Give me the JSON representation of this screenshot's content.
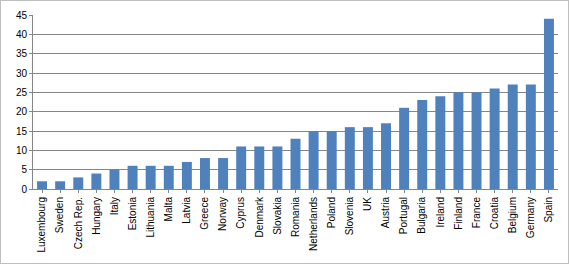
{
  "chart_data": {
    "type": "bar",
    "categories": [
      "Luxembourg",
      "Sweden",
      "Czech Rep.",
      "Hungary",
      "Italy",
      "Estonia",
      "Lithuania",
      "Malta",
      "Latvia",
      "Greece",
      "Norway",
      "Cyprus",
      "Denmark",
      "Slovakia",
      "Romania",
      "Netherlands",
      "Poland",
      "Slovenia",
      "UK",
      "Austria",
      "Portugal",
      "Bulgaria",
      "Ireland",
      "Finland",
      "France",
      "Croatia",
      "Belgium",
      "Germany",
      "Spain"
    ],
    "values": [
      2,
      2,
      3,
      4,
      5,
      6,
      6,
      6,
      7,
      8,
      8,
      11,
      11,
      11,
      13,
      15,
      15,
      16,
      16,
      17,
      21,
      23,
      24,
      25,
      25,
      26,
      27,
      27,
      44
    ],
    "color": "#4f81bd",
    "ylim": [
      0,
      45
    ],
    "yticks": [
      0,
      5,
      10,
      15,
      20,
      25,
      30,
      35,
      40,
      45
    ],
    "grid": true
  }
}
